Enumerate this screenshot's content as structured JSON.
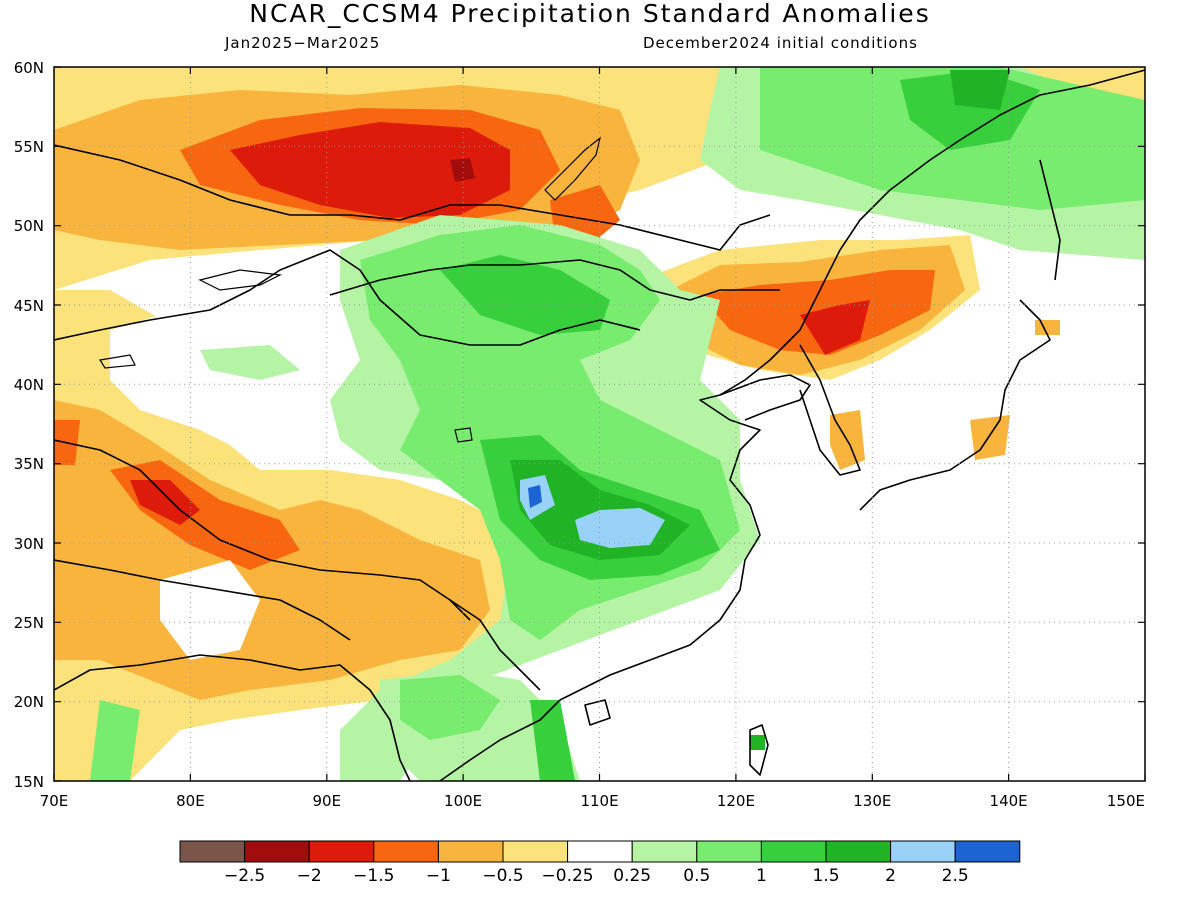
{
  "title": "NCAR_CCSM4 Precipitation Standard Anomalies",
  "period": "Jan2025−Mar2025",
  "init": "December2024 initial conditions",
  "lon_ticks": [
    "70E",
    "80E",
    "90E",
    "100E",
    "110E",
    "120E",
    "130E",
    "140E",
    "150E"
  ],
  "lat_ticks": [
    "60N",
    "55N",
    "50N",
    "45N",
    "40N",
    "35N",
    "30N",
    "25N",
    "20N",
    "15N"
  ],
  "colorbar": {
    "colors": [
      "#7a564a",
      "#a10c0c",
      "#dc1b0b",
      "#f8660f",
      "#f8b43d",
      "#fce27b",
      "#ffffff",
      "#b4f4a4",
      "#78ec6e",
      "#38cf3c",
      "#1fb325",
      "#98d2f7",
      "#1b64d1"
    ],
    "labels": [
      "−2.5",
      "−2",
      "−1.5",
      "−1",
      "−0.5",
      "−0.25",
      "0.25",
      "0.5",
      "1",
      "1.5",
      "2",
      "2.5"
    ]
  }
}
